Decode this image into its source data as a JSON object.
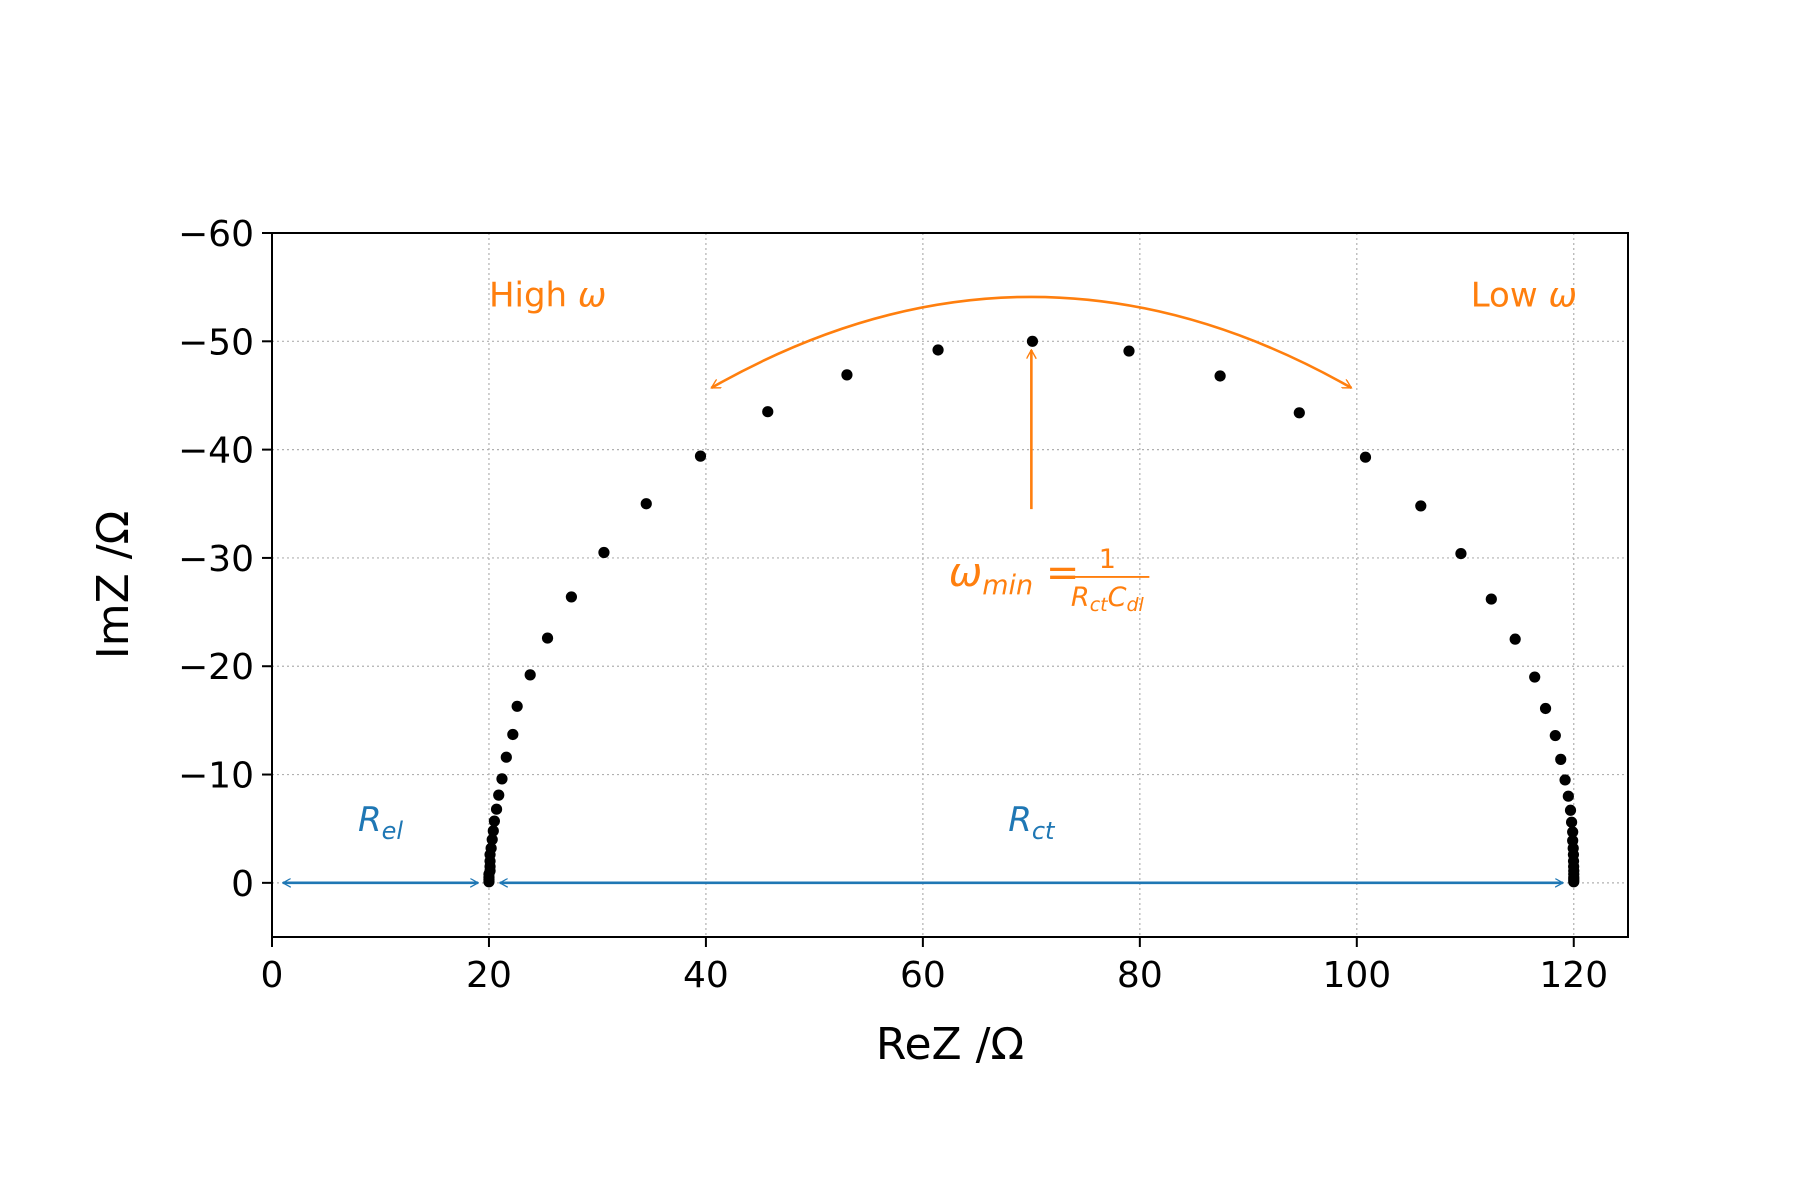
{
  "colors": {
    "points": "#000000",
    "resistance": "#1f77b4",
    "frequency": "#ff7f0e",
    "grid": "#b0b0b0"
  },
  "chart_data": {
    "type": "scatter",
    "xlabel": "ReZ /Ω",
    "ylabel": "ImZ /Ω",
    "xlim": [
      0,
      125
    ],
    "ylim": [
      5,
      -60
    ],
    "y_axis_inverted": true,
    "grid": "on (dotted)",
    "legend": "none",
    "x_ticks": [
      "0",
      "20",
      "40",
      "60",
      "80",
      "100",
      "120"
    ],
    "x_tick_values": [
      0,
      20,
      40,
      60,
      80,
      100,
      120
    ],
    "y_ticks": [
      "−60",
      "−50",
      "−40",
      "−30",
      "−20",
      "−10",
      "0"
    ],
    "y_tick_values": [
      -60,
      -50,
      -40,
      -30,
      -20,
      -10,
      0
    ],
    "series": [
      {
        "marker": "dot",
        "points": [
          [
            20.0,
            -0.1
          ],
          [
            20.0,
            -0.3
          ],
          [
            20.0,
            -0.5
          ],
          [
            20.0,
            -0.8
          ],
          [
            20.1,
            -1.1
          ],
          [
            20.1,
            -1.5
          ],
          [
            20.1,
            -2.0
          ],
          [
            20.1,
            -2.6
          ],
          [
            20.2,
            -3.2
          ],
          [
            20.3,
            -4.0
          ],
          [
            20.4,
            -4.8
          ],
          [
            20.5,
            -5.7
          ],
          [
            20.7,
            -6.8
          ],
          [
            20.9,
            -8.1
          ],
          [
            21.2,
            -9.6
          ],
          [
            21.6,
            -11.6
          ],
          [
            22.2,
            -13.7
          ],
          [
            22.6,
            -16.3
          ],
          [
            23.8,
            -19.2
          ],
          [
            25.4,
            -22.6
          ],
          [
            27.6,
            -26.4
          ],
          [
            30.6,
            -30.5
          ],
          [
            34.5,
            -35.0
          ],
          [
            39.5,
            -39.4
          ],
          [
            45.7,
            -43.5
          ],
          [
            53.0,
            -46.9
          ],
          [
            61.4,
            -49.2
          ],
          [
            70.1,
            -50.0
          ],
          [
            79.0,
            -49.1
          ],
          [
            87.4,
            -46.8
          ],
          [
            94.7,
            -43.4
          ],
          [
            100.8,
            -39.3
          ],
          [
            105.9,
            -34.8
          ],
          [
            109.6,
            -30.4
          ],
          [
            112.4,
            -26.2
          ],
          [
            114.6,
            -22.5
          ],
          [
            116.4,
            -19.0
          ],
          [
            117.4,
            -16.1
          ],
          [
            118.3,
            -13.6
          ],
          [
            118.8,
            -11.4
          ],
          [
            119.2,
            -9.5
          ],
          [
            119.5,
            -8.0
          ],
          [
            119.7,
            -6.7
          ],
          [
            119.8,
            -5.6
          ],
          [
            119.9,
            -4.7
          ],
          [
            119.9,
            -3.9
          ],
          [
            119.95,
            -3.2
          ],
          [
            119.97,
            -2.6
          ],
          [
            119.98,
            -2.0
          ],
          [
            119.99,
            -1.5
          ],
          [
            120.0,
            -1.1
          ],
          [
            120.0,
            -0.8
          ],
          [
            120.0,
            -0.5
          ],
          [
            120.0,
            -0.3
          ],
          [
            120.0,
            -0.1
          ]
        ]
      }
    ],
    "annotations": {
      "high_omega": {
        "base": "High ",
        "symbol": "ω",
        "x": 20.0,
        "y": -53.2
      },
      "low_omega": {
        "base": "Low ",
        "symbol": "ω",
        "x": 110.5,
        "y": -53.2
      },
      "omega_min": {
        "base": "ω",
        "sub": "min",
        "equals": " = ",
        "numerator": "1",
        "den_r": "R",
        "den_r_sub": "ct",
        "den_c": "C",
        "den_c_sub": "dl",
        "x": 70.0,
        "y": -30.0
      },
      "r_el": {
        "base": "R",
        "sub": "el",
        "x": 10.0,
        "y": -4.8
      },
      "r_ct": {
        "base": "R",
        "sub": "ct",
        "x": 70.0,
        "y": -4.8
      },
      "r_el_arrow": {
        "from": [
          1,
          0
        ],
        "to": [
          19,
          0
        ]
      },
      "r_ct_arrow": {
        "from": [
          21,
          0
        ],
        "to": [
          119,
          0
        ]
      },
      "vertical_arrow": {
        "from": [
          70,
          -34.5
        ],
        "to": [
          70,
          -49.2
        ]
      },
      "arc_arrow": {
        "from": [
          40.5,
          -45.7
        ],
        "control": [
          70.0,
          -62.5
        ],
        "to": [
          99.5,
          -45.7
        ]
      }
    }
  }
}
